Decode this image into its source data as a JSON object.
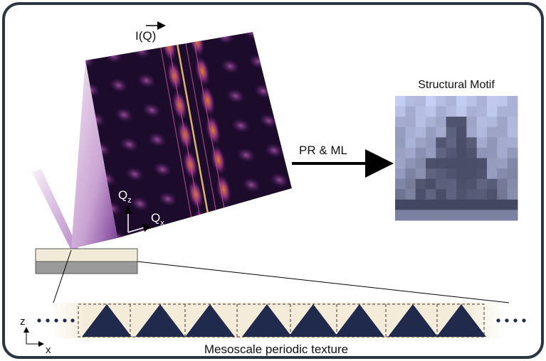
{
  "diagram": {
    "intensity_label": "I(Q)",
    "arrow_label": "PR & ML",
    "motif_title": "Structural Motif",
    "reciprocal_axes": [
      {
        "base": "Q",
        "sub": "z"
      },
      {
        "base": "Q",
        "sub": "x"
      }
    ],
    "real_axes": [
      "z",
      "x"
    ],
    "texture_label": "Mesoscale periodic texture"
  }
}
